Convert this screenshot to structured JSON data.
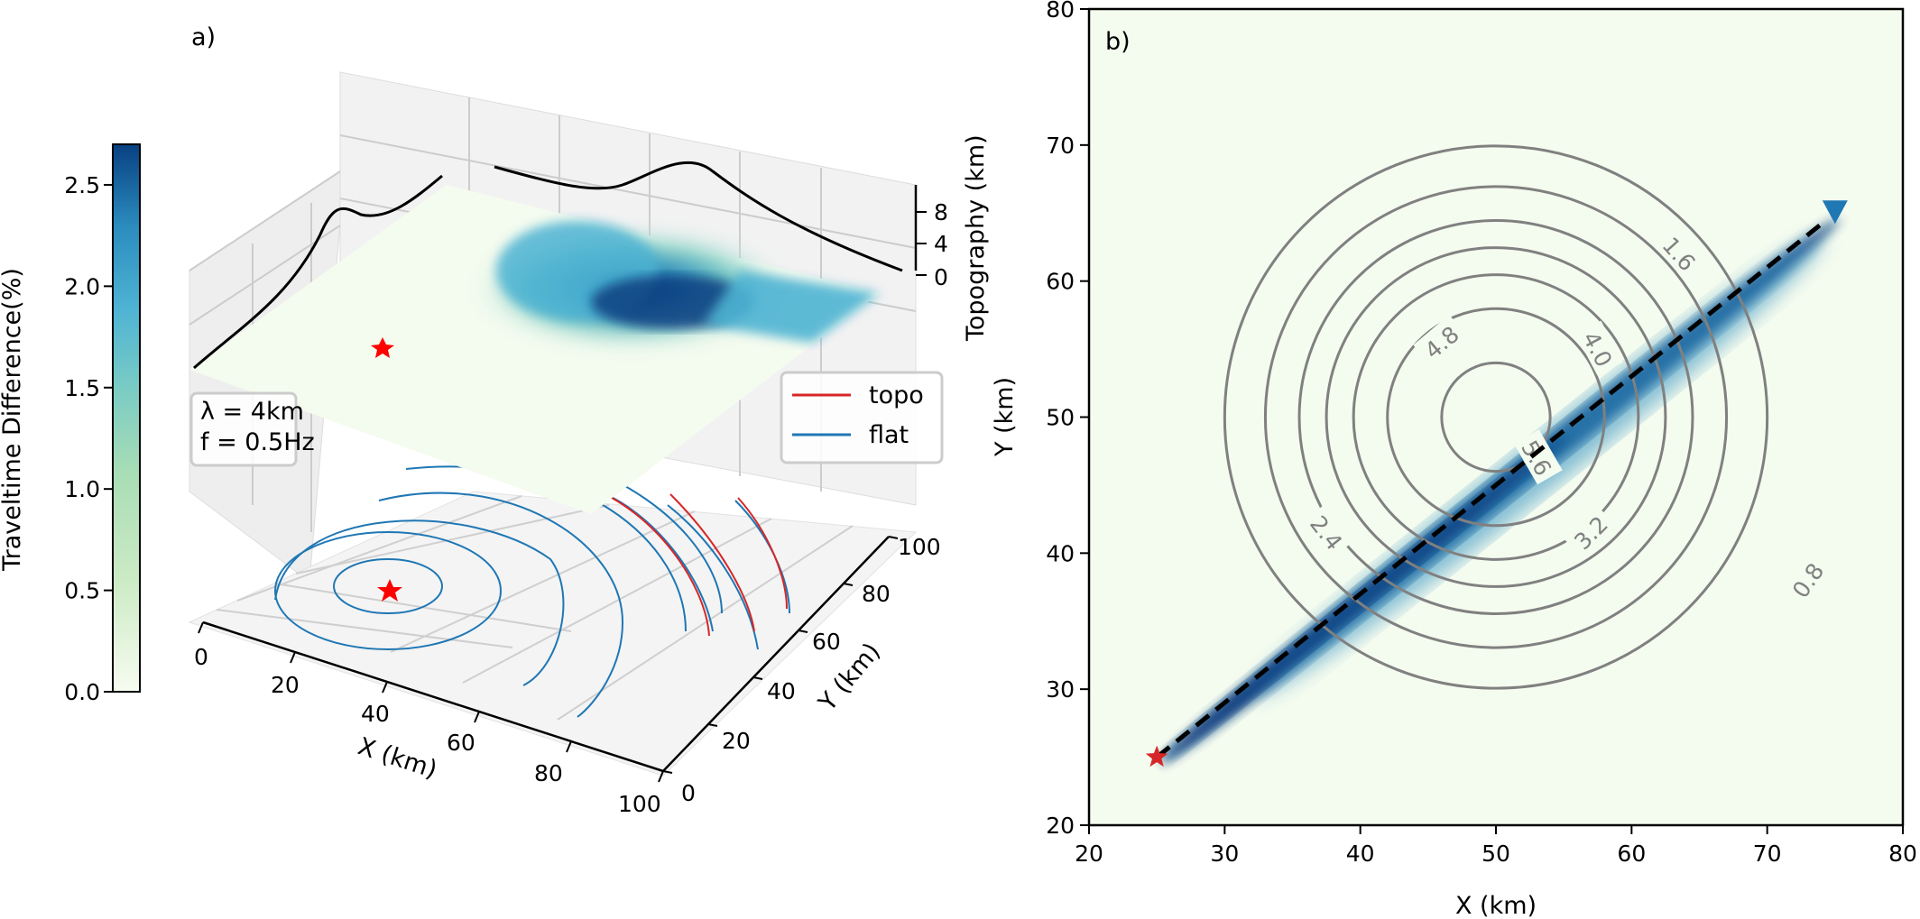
{
  "colorbar": {
    "label": "Traveltime Difference(%)",
    "ticks": [
      0.0,
      0.5,
      1.0,
      1.5,
      2.0,
      2.5
    ],
    "tick_labels": [
      "0.0",
      "0.5",
      "1.0",
      "1.5",
      "2.0",
      "2.5"
    ],
    "range": [
      0,
      2.7
    ],
    "colors": [
      "#f7fcf0",
      "#ccebc5",
      "#7bccc4",
      "#4eb3d3",
      "#2b8cbe",
      "#084081"
    ]
  },
  "panel_a": {
    "panel_label": "a)",
    "xlabel": "X (km)",
    "ylabel": "Y (km)",
    "zlabel": "Topography (km)",
    "x_ticks": [
      "0",
      "20",
      "40",
      "60",
      "80",
      "100"
    ],
    "y_ticks": [
      "0",
      "20",
      "40",
      "60",
      "80",
      "100"
    ],
    "z_ticks": [
      "0",
      "4",
      "8"
    ],
    "annotation": {
      "line1": "λ = 4km",
      "line2": "f = 0.5Hz"
    },
    "legend": [
      {
        "label": "topo",
        "color": "#d62728"
      },
      {
        "label": "flat",
        "color": "#1f77b4"
      }
    ],
    "source_marker_color": "#ff0000"
  },
  "chart_data": {
    "type": "heatmap",
    "title": "b)",
    "xlabel": "X (km)",
    "ylabel": "Y (km)",
    "xlim": [
      20,
      80
    ],
    "ylim": [
      20,
      80
    ],
    "x_ticks": [
      20,
      30,
      40,
      50,
      60,
      70,
      80
    ],
    "y_ticks": [
      20,
      30,
      40,
      50,
      60,
      70,
      80
    ],
    "source": {
      "x": 25,
      "y": 25
    },
    "receiver": {
      "x": 75,
      "y": 65
    },
    "ray_path": {
      "from": [
        25,
        25
      ],
      "to": [
        75,
        65
      ],
      "style": "dashed"
    },
    "topography_center": [
      50,
      50
    ],
    "contours": [
      {
        "level": 0.8,
        "radius": 20
      },
      {
        "level": 1.6,
        "radius": 17
      },
      {
        "level": 2.4,
        "radius": 14.5
      },
      {
        "level": 3.2,
        "radius": 12.5
      },
      {
        "level": 4.0,
        "radius": 10.5
      },
      {
        "level": 4.8,
        "radius": 8
      },
      {
        "level": 5.6,
        "radius": 4
      }
    ],
    "contour_labels": [
      {
        "text": "0.8",
        "x": 73,
        "y": 38,
        "angle": -55
      },
      {
        "text": "1.6",
        "x": 63.5,
        "y": 62,
        "angle": 48
      },
      {
        "text": "2.4",
        "x": 37.5,
        "y": 41.5,
        "angle": 52
      },
      {
        "text": "3.2",
        "x": 57,
        "y": 41.5,
        "angle": -45
      },
      {
        "text": "4.0",
        "x": 57.5,
        "y": 55,
        "angle": 62
      },
      {
        "text": "4.8",
        "x": 46,
        "y": 55.5,
        "angle": -40
      },
      {
        "text": "5.6",
        "x": 53,
        "y": 47,
        "angle": 60
      }
    ]
  }
}
